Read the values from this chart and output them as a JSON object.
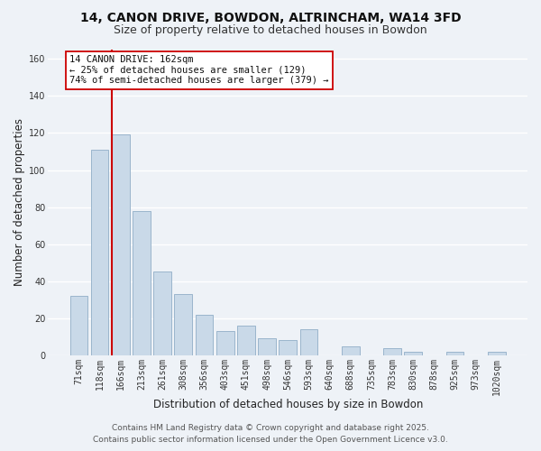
{
  "title": "14, CANON DRIVE, BOWDON, ALTRINCHAM, WA14 3FD",
  "subtitle": "Size of property relative to detached houses in Bowdon",
  "xlabel": "Distribution of detached houses by size in Bowdon",
  "ylabel": "Number of detached properties",
  "bar_labels": [
    "71sqm",
    "118sqm",
    "166sqm",
    "213sqm",
    "261sqm",
    "308sqm",
    "356sqm",
    "403sqm",
    "451sqm",
    "498sqm",
    "546sqm",
    "593sqm",
    "640sqm",
    "688sqm",
    "735sqm",
    "783sqm",
    "830sqm",
    "878sqm",
    "925sqm",
    "973sqm",
    "1020sqm"
  ],
  "bar_values": [
    32,
    111,
    119,
    78,
    45,
    33,
    22,
    13,
    16,
    9,
    8,
    14,
    0,
    5,
    0,
    4,
    2,
    0,
    2,
    0,
    2
  ],
  "bar_color": "#c9d9e8",
  "bar_edge_color": "#9ab5cc",
  "highlight_bar_index": 2,
  "vline_color": "#cc0000",
  "ylim": [
    0,
    165
  ],
  "yticks": [
    0,
    20,
    40,
    60,
    80,
    100,
    120,
    140,
    160
  ],
  "annotation_line1": "14 CANON DRIVE: 162sqm",
  "annotation_line2": "← 25% of detached houses are smaller (129)",
  "annotation_line3": "74% of semi-detached houses are larger (379) →",
  "footer_line1": "Contains HM Land Registry data © Crown copyright and database right 2025.",
  "footer_line2": "Contains public sector information licensed under the Open Government Licence v3.0.",
  "background_color": "#eef2f7",
  "plot_bg_color": "#eef2f7",
  "grid_color": "#ffffff",
  "title_fontsize": 10,
  "subtitle_fontsize": 9,
  "axis_label_fontsize": 8.5,
  "tick_fontsize": 7,
  "footer_fontsize": 6.5,
  "annotation_fontsize": 7.5
}
